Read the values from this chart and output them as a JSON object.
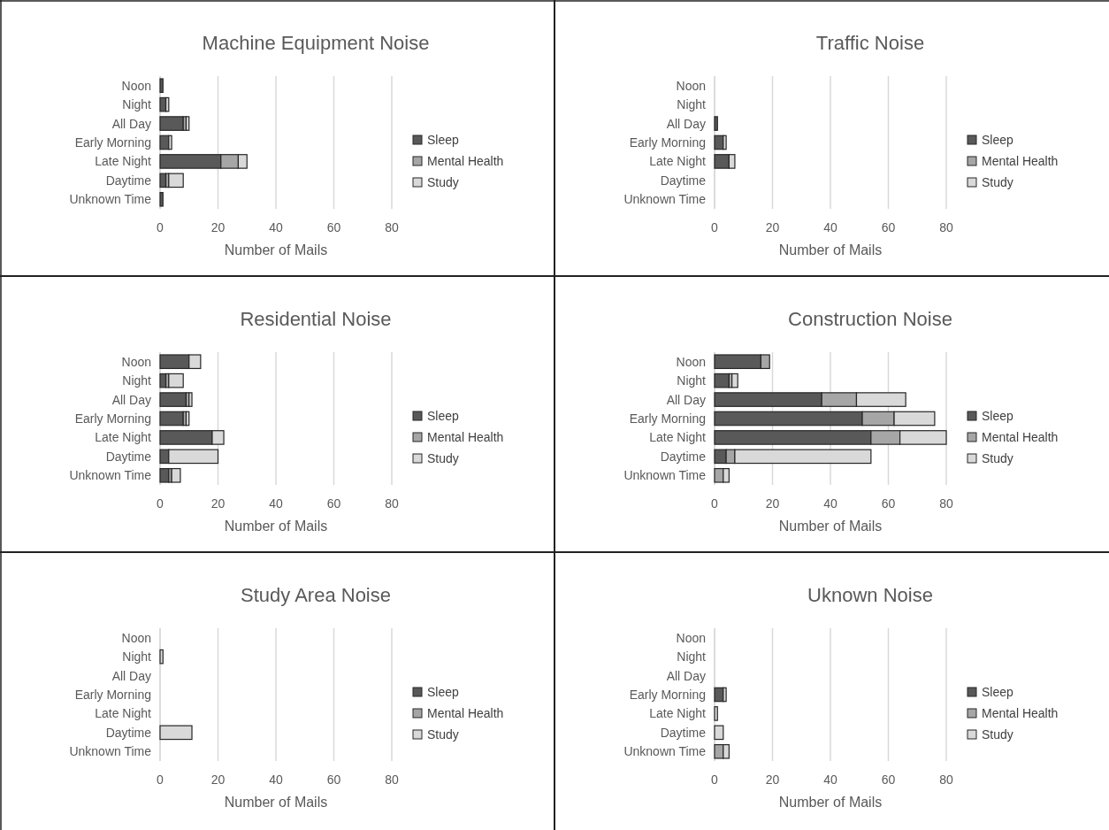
{
  "chart_data": [
    {
      "type": "bar",
      "orientation": "horizontal",
      "stacked": true,
      "title": "Machine Equipment Noise",
      "xlabel": "Number of Mails",
      "categories": [
        "Noon",
        "Night",
        "All Day",
        "Early Morning",
        "Late Night",
        "Daytime",
        "Unknown Time"
      ],
      "series": [
        {
          "name": "Sleep",
          "color": "#595959",
          "values": [
            1,
            2,
            8,
            3,
            21,
            2,
            1
          ]
        },
        {
          "name": "Mental Health",
          "color": "#a6a6a6",
          "values": [
            0,
            0,
            1,
            0,
            6,
            1,
            0
          ]
        },
        {
          "name": "Study",
          "color": "#d9d9d9",
          "values": [
            0,
            1,
            1,
            1,
            3,
            5,
            0
          ]
        }
      ],
      "xlim": [
        0,
        80
      ],
      "xticks": [
        0,
        20,
        40,
        60,
        80
      ],
      "grid": "x",
      "legend": "right"
    },
    {
      "type": "bar",
      "orientation": "horizontal",
      "stacked": true,
      "title": "Traffic Noise",
      "xlabel": "Number of Mails",
      "categories": [
        "Noon",
        "Night",
        "All Day",
        "Early Morning",
        "Late Night",
        "Daytime",
        "Unknown Time"
      ],
      "series": [
        {
          "name": "Sleep",
          "color": "#595959",
          "values": [
            0,
            0,
            1,
            3,
            5,
            0,
            0
          ]
        },
        {
          "name": "Mental Health",
          "color": "#a6a6a6",
          "values": [
            0,
            0,
            0,
            0,
            0,
            0,
            0
          ]
        },
        {
          "name": "Study",
          "color": "#d9d9d9",
          "values": [
            0,
            0,
            0,
            1,
            2,
            0,
            0
          ]
        }
      ],
      "xlim": [
        0,
        80
      ],
      "xticks": [
        0,
        20,
        40,
        60,
        80
      ],
      "grid": "x",
      "legend": "right"
    },
    {
      "type": "bar",
      "orientation": "horizontal",
      "stacked": true,
      "title": "Residential Noise",
      "xlabel": "Number of Mails",
      "categories": [
        "Noon",
        "Night",
        "All Day",
        "Early Morning",
        "Late Night",
        "Daytime",
        "Unknown Time"
      ],
      "series": [
        {
          "name": "Sleep",
          "color": "#595959",
          "values": [
            10,
            2,
            9,
            8,
            18,
            3,
            3
          ]
        },
        {
          "name": "Mental Health",
          "color": "#a6a6a6",
          "values": [
            0,
            1,
            1,
            1,
            0,
            0,
            1
          ]
        },
        {
          "name": "Study",
          "color": "#d9d9d9",
          "values": [
            4,
            5,
            1,
            1,
            4,
            17,
            3
          ]
        }
      ],
      "xlim": [
        0,
        80
      ],
      "xticks": [
        0,
        20,
        40,
        60,
        80
      ],
      "grid": "x",
      "legend": "right"
    },
    {
      "type": "bar",
      "orientation": "horizontal",
      "stacked": true,
      "title": "Construction Noise",
      "xlabel": "Number of Mails",
      "categories": [
        "Noon",
        "Night",
        "All Day",
        "Early Morning",
        "Late Night",
        "Daytime",
        "Unknown Time"
      ],
      "series": [
        {
          "name": "Sleep",
          "color": "#595959",
          "values": [
            16,
            5,
            37,
            51,
            54,
            4,
            0
          ]
        },
        {
          "name": "Mental Health",
          "color": "#a6a6a6",
          "values": [
            3,
            1,
            12,
            11,
            10,
            3,
            3
          ]
        },
        {
          "name": "Study",
          "color": "#d9d9d9",
          "values": [
            0,
            2,
            17,
            14,
            16,
            47,
            2
          ]
        }
      ],
      "xlim": [
        0,
        80
      ],
      "xticks": [
        0,
        20,
        40,
        60,
        80
      ],
      "grid": "x",
      "legend": "right"
    },
    {
      "type": "bar",
      "orientation": "horizontal",
      "stacked": true,
      "title": "Study Area Noise",
      "xlabel": "Number of Mails",
      "categories": [
        "Noon",
        "Night",
        "All Day",
        "Early Morning",
        "Late Night",
        "Daytime",
        "Unknown Time"
      ],
      "series": [
        {
          "name": "Sleep",
          "color": "#595959",
          "values": [
            0,
            0,
            0,
            0,
            0,
            0,
            0
          ]
        },
        {
          "name": "Mental Health",
          "color": "#a6a6a6",
          "values": [
            0,
            0,
            0,
            0,
            0,
            0,
            0
          ]
        },
        {
          "name": "Study",
          "color": "#d9d9d9",
          "values": [
            0,
            1,
            0,
            0,
            0,
            11,
            0
          ]
        }
      ],
      "xlim": [
        0,
        80
      ],
      "xticks": [
        0,
        20,
        40,
        60,
        80
      ],
      "grid": "x",
      "legend": "right"
    },
    {
      "type": "bar",
      "orientation": "horizontal",
      "stacked": true,
      "title": "Uknown Noise",
      "xlabel": "Number of Mails",
      "categories": [
        "Noon",
        "Night",
        "All Day",
        "Early Morning",
        "Late Night",
        "Daytime",
        "Unknown Time"
      ],
      "series": [
        {
          "name": "Sleep",
          "color": "#595959",
          "values": [
            0,
            0,
            0,
            3,
            0,
            0,
            0
          ]
        },
        {
          "name": "Mental Health",
          "color": "#a6a6a6",
          "values": [
            0,
            0,
            0,
            0,
            0,
            0,
            3
          ]
        },
        {
          "name": "Study",
          "color": "#d9d9d9",
          "values": [
            0,
            0,
            0,
            1,
            1,
            3,
            2
          ]
        }
      ],
      "xlim": [
        0,
        80
      ],
      "xticks": [
        0,
        20,
        40,
        60,
        80
      ],
      "grid": "x",
      "legend": "right"
    }
  ]
}
